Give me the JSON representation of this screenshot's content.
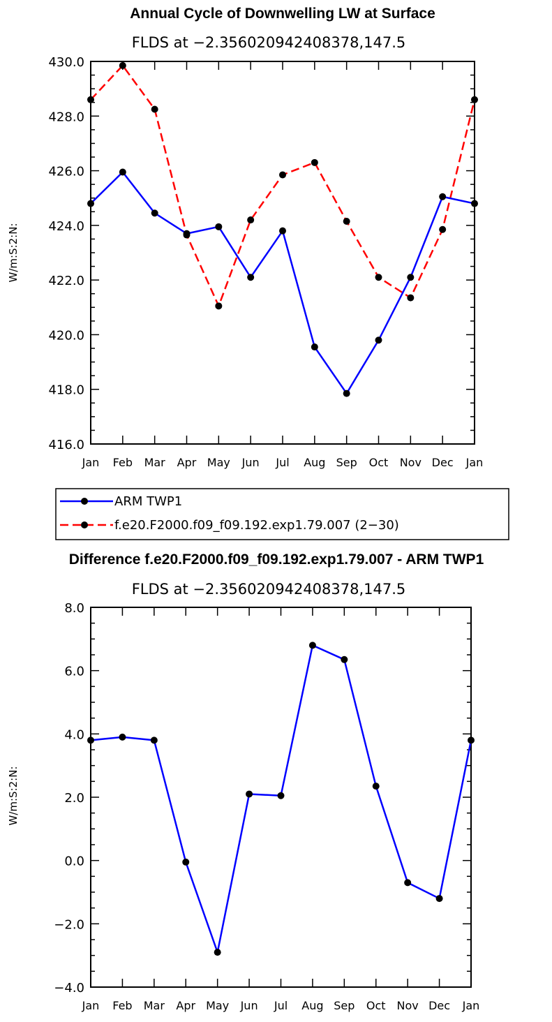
{
  "chart_data": [
    {
      "type": "line",
      "title": "Annual Cycle of Downwelling LW at Surface",
      "subtitle": "FLDS at −2.356020942408378,147.5",
      "ylabel": "W/m:S:2:N:",
      "categories": [
        "Jan",
        "Feb",
        "Mar",
        "Apr",
        "May",
        "Jun",
        "Jul",
        "Aug",
        "Sep",
        "Oct",
        "Nov",
        "Dec",
        "Jan"
      ],
      "ylim": [
        416.0,
        430.0
      ],
      "yticks": [
        "416.0",
        "418.0",
        "420.0",
        "422.0",
        "424.0",
        "426.0",
        "428.0",
        "430.0"
      ],
      "series": [
        {
          "name": "ARM TWP1",
          "color": "#0000ff",
          "dash": "solid",
          "values": [
            424.8,
            425.95,
            424.45,
            423.7,
            423.95,
            422.1,
            423.8,
            419.55,
            417.85,
            419.8,
            422.1,
            425.05,
            424.8
          ]
        },
        {
          "name": "f.e20.F2000.f09_f09.192.exp1.79.007 (2−30)",
          "color": "#ff0000",
          "dash": "dashed",
          "values": [
            428.6,
            429.85,
            428.25,
            423.65,
            421.05,
            424.2,
            425.85,
            426.3,
            424.15,
            422.1,
            421.35,
            423.85,
            428.6
          ]
        }
      ],
      "legend": [
        {
          "label": "ARM TWP1"
        },
        {
          "label": "f.e20.F2000.f09_f09.192.exp1.79.007 (2−30)"
        }
      ]
    },
    {
      "type": "line",
      "title": "Difference f.e20.F2000.f09_f09.192.exp1.79.007 - ARM TWP1",
      "subtitle": "FLDS at −2.356020942408378,147.5",
      "ylabel": "W/m:S:2:N:",
      "categories": [
        "Jan",
        "Feb",
        "Mar",
        "Apr",
        "May",
        "Jun",
        "Jul",
        "Aug",
        "Sep",
        "Oct",
        "Nov",
        "Dec",
        "Jan"
      ],
      "ylim": [
        -4.0,
        8.0
      ],
      "yticks": [
        "−4.0",
        "−2.0",
        "0.0",
        "2.0",
        "4.0",
        "6.0",
        "8.0"
      ],
      "series": [
        {
          "name": "Difference",
          "color": "#0000ff",
          "dash": "solid",
          "values": [
            3.8,
            3.9,
            3.8,
            -0.05,
            -2.9,
            2.1,
            2.05,
            6.8,
            6.35,
            2.35,
            -0.7,
            -1.2,
            3.8
          ]
        }
      ]
    }
  ]
}
